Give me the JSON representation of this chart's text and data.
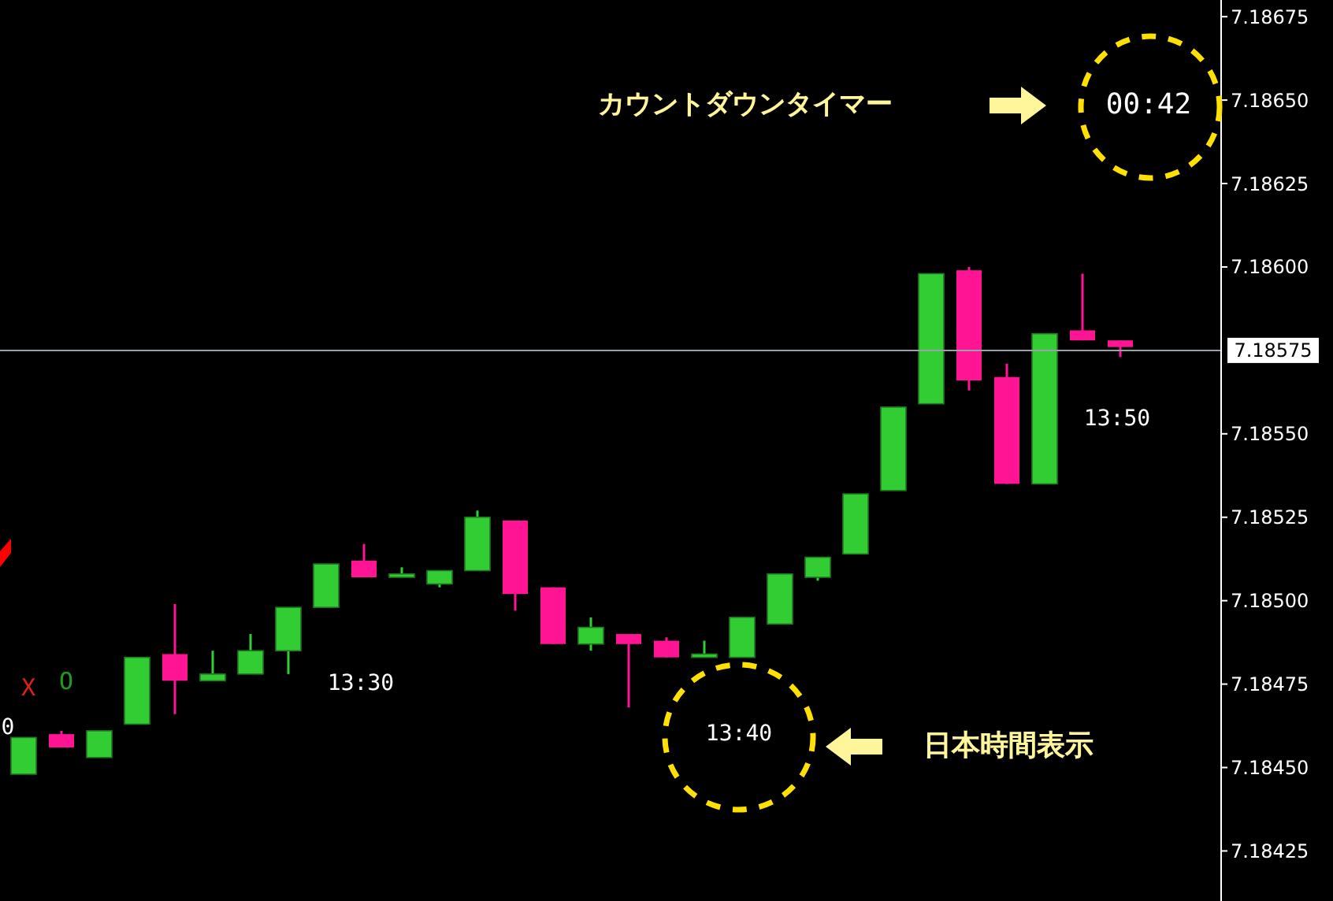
{
  "chart_data": {
    "type": "candlestick",
    "categories": [
      null,
      null,
      null,
      null,
      null,
      null,
      null,
      null,
      null,
      null,
      null,
      null,
      null,
      null,
      null,
      null,
      null,
      null,
      null,
      null,
      null,
      null,
      null,
      null,
      null,
      null,
      null,
      null,
      null,
      null
    ],
    "ohlc": [
      [
        7.18448,
        7.18459,
        7.18448,
        7.18459
      ],
      [
        7.1846,
        7.18461,
        7.18456,
        7.18456
      ],
      [
        7.18453,
        7.18461,
        7.18453,
        7.18461
      ],
      [
        7.18463,
        7.18483,
        7.18463,
        7.18483
      ],
      [
        7.18484,
        7.18499,
        7.18466,
        7.18476
      ],
      [
        7.18476,
        7.18485,
        7.18476,
        7.18478
      ],
      [
        7.18478,
        7.1849,
        7.18478,
        7.18485
      ],
      [
        7.18485,
        7.18498,
        7.18478,
        7.18498
      ],
      [
        7.18498,
        7.18511,
        7.18498,
        7.18511
      ],
      [
        7.18512,
        7.18517,
        7.18507,
        7.18507
      ],
      [
        7.18507,
        7.1851,
        7.18507,
        7.18508
      ],
      [
        7.18505,
        7.18509,
        7.18504,
        7.18509
      ],
      [
        7.18509,
        7.18527,
        7.18509,
        7.18525
      ],
      [
        7.18524,
        7.18524,
        7.18497,
        7.18502
      ],
      [
        7.18504,
        7.18504,
        7.18487,
        7.18487
      ],
      [
        7.18487,
        7.18495,
        7.18485,
        7.18492
      ],
      [
        7.1849,
        7.1849,
        7.18468,
        7.18487
      ],
      [
        7.18488,
        7.18489,
        7.18483,
        7.18483
      ],
      [
        7.18483,
        7.18488,
        7.18483,
        7.18484
      ],
      [
        7.18483,
        7.18495,
        7.18483,
        7.18495
      ],
      [
        7.18493,
        7.18508,
        7.18493,
        7.18508
      ],
      [
        7.18507,
        7.18513,
        7.18506,
        7.18513
      ],
      [
        7.18514,
        7.18532,
        7.18514,
        7.18532
      ],
      [
        7.18533,
        7.18558,
        7.18533,
        7.18558
      ],
      [
        7.18559,
        7.18598,
        7.18559,
        7.18598
      ],
      [
        7.18599,
        7.186,
        7.18563,
        7.18566
      ],
      [
        7.18567,
        7.18571,
        7.18535,
        7.18535
      ],
      [
        7.18535,
        7.1858,
        7.18535,
        7.1858
      ],
      [
        7.18581,
        7.18598,
        7.18578,
        7.18578
      ],
      [
        7.18578,
        7.18578,
        7.18573,
        7.18576
      ]
    ],
    "colors": [
      "#32cd32",
      "#ff1493",
      "#32cd32",
      "#32cd32",
      "#ff1493",
      "#32cd32",
      "#32cd32",
      "#32cd32",
      "#32cd32",
      "#ff1493",
      "#32cd32",
      "#32cd32",
      "#32cd32",
      "#ff1493",
      "#ff1493",
      "#32cd32",
      "#ff1493",
      "#ff1493",
      "#32cd32",
      "#32cd32",
      "#32cd32",
      "#32cd32",
      "#32cd32",
      "#32cd32",
      "#32cd32",
      "#ff1493",
      "#ff1493",
      "#32cd32",
      "#ff1493",
      "#ff1493"
    ],
    "ylim": [
      7.1841,
      7.1868
    ],
    "yticks": [
      {
        "value": 7.18425,
        "label": "7.18425"
      },
      {
        "value": 7.1845,
        "label": "7.18450"
      },
      {
        "value": 7.18475,
        "label": "7.18475"
      },
      {
        "value": 7.185,
        "label": "7.18500"
      },
      {
        "value": 7.18525,
        "label": "7.18525"
      },
      {
        "value": 7.1855,
        "label": "7.18550"
      },
      {
        "value": 7.186,
        "label": "7.18600"
      },
      {
        "value": 7.18625,
        "label": "7.18625"
      },
      {
        "value": 7.1865,
        "label": "7.18650"
      },
      {
        "value": 7.18675,
        "label": "7.18675"
      }
    ],
    "tick_labels": "y",
    "ref_lines": [
      {
        "axis": "y",
        "value": 7.18575,
        "label": "7.18575",
        "color": "#9aa0a8"
      }
    ],
    "annotations": [
      "カウントダウンタイマー",
      "00:42",
      "日本時間表示",
      "13:30",
      "13:40",
      "13:50",
      "X",
      "O",
      "0"
    ]
  }
}
